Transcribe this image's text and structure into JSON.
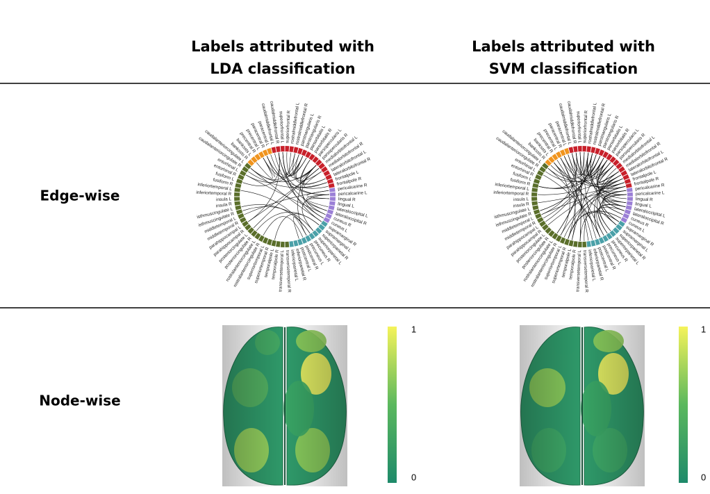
{
  "columns": [
    [
      "Labels attributed with",
      "LDA classification"
    ],
    [
      "Labels attributed with",
      "SVM classification"
    ]
  ],
  "rows": [
    "Edge-wise",
    "Node-wise"
  ],
  "node_labels": [
    "superiorfrontal R",
    "rostralmiddlefrontal L",
    "rostralmiddlefrontal R",
    "parstriangularis L",
    "parstriangularis R",
    "parsorbitalis L",
    "parsorbitalis R",
    "parsopercularis L",
    "parsopercularis R",
    "medialorbitofrontal L",
    "medialorbitofrontal R",
    "lateralorbitofrontal L",
    "lateralorbitofrontal R",
    "frontalpole L",
    "frontalpole R",
    "pericalcarine R",
    "pericalcarine L",
    "lingual R",
    "lingual L",
    "lateraloccipital L",
    "lateraloccipital R",
    "cuneus R",
    "cuneus L",
    "supramarginal R",
    "supramarginal L",
    "superiorparietal R",
    "superiorparietal L",
    "precuneus R",
    "precuneus L",
    "postcentral R",
    "postcentral L",
    "inferiorparietal R",
    "inferiorparietal L",
    "transversetemporal R",
    "transversetemporal L",
    "temporalpole R",
    "temporalpole L",
    "superiortemporal R",
    "superiortemporal L",
    "rostralanteriorcingulate R",
    "rostralanteriorcingulate L",
    "posteriorcingulate R",
    "posteriorcingulate L",
    "parahippocampal R",
    "parahippocampal L",
    "middletemporal R",
    "middletemporal L",
    "isthmuscingulate R",
    "isthmuscingulate L",
    "insula R",
    "insula L",
    "inferiortemporal R",
    "inferiortemporal L",
    "fusiform R",
    "fusiform L",
    "entorhinal R",
    "entorhinal L",
    "caudalanteriorcingulate R",
    "caudalanteriorcingulate L",
    "bankssts R",
    "bankssts L",
    "precentral R",
    "precentral L",
    "paracentral R",
    "paracentral L",
    "caudalmiddlefrontal L",
    "caudalmiddlefrontal R",
    "superiorfrontal L"
  ],
  "colorbar": {
    "max": 1,
    "min": 0
  }
}
